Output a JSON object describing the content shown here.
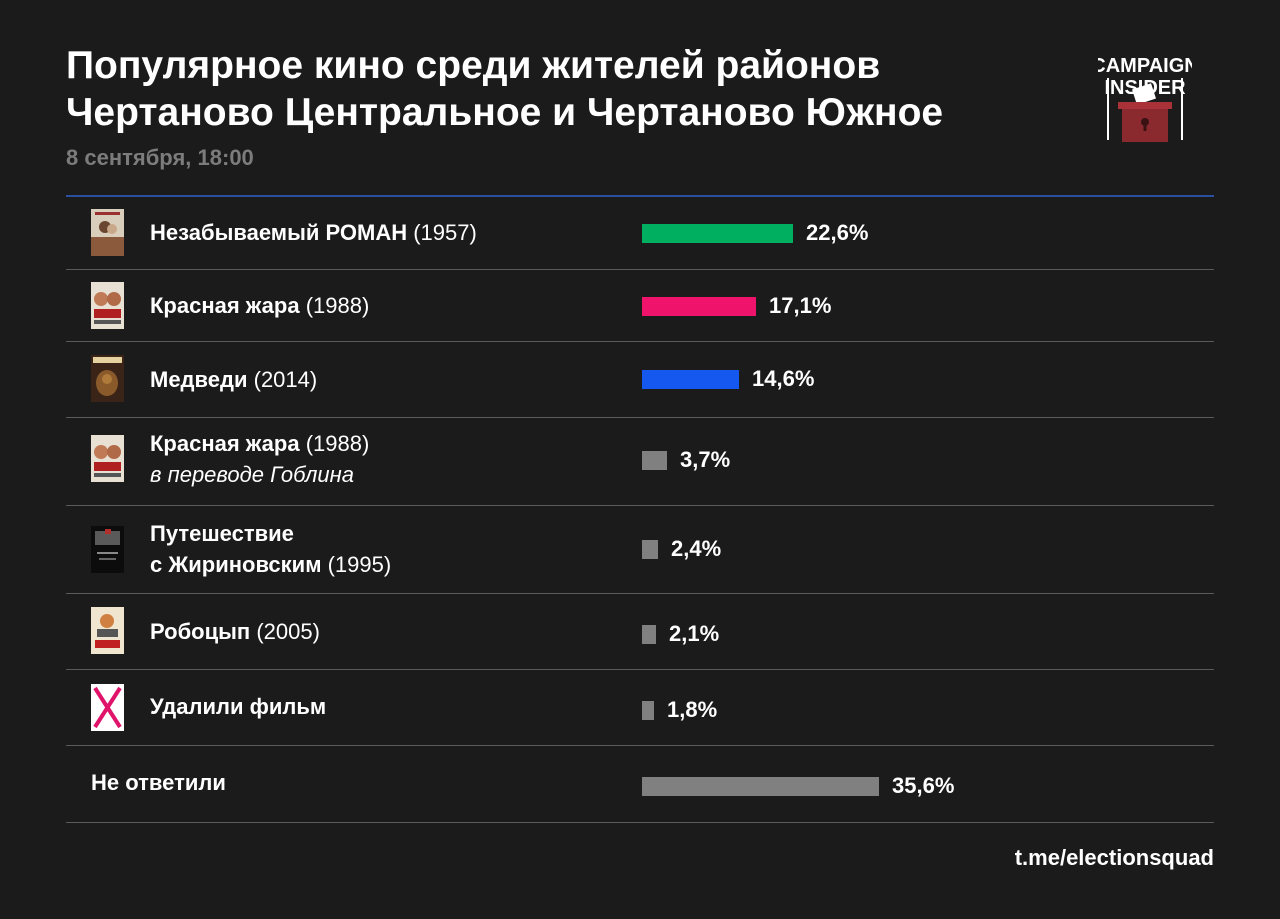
{
  "header": {
    "title_line1": "Популярное кино среди жителей районов",
    "title_line2": "Чертаново Центральное и Чертаново Южное",
    "subtitle": "8 сентября, 18:00"
  },
  "logo": {
    "line1": "CAMPAIGN",
    "line2": "INSIDER"
  },
  "footer": {
    "link": "t.me/electionsquad"
  },
  "chart_data": {
    "type": "bar",
    "orientation": "horizontal",
    "categories": [
      "Незабываемый РОМАН (1957)",
      "Красная жара (1988)",
      "Медведи (2014)",
      "Красная жара (1988) в переводе Гоблина",
      "Путешествие с Жириновским (1995)",
      "Робоцып (2005)",
      "Удалили фильм",
      "Не ответили"
    ],
    "values": [
      22.6,
      17.1,
      14.6,
      3.7,
      2.4,
      2.1,
      1.8,
      35.6
    ],
    "value_labels": [
      "22,6%",
      "17,1%",
      "14,6%",
      "3,7%",
      "2,4%",
      "2,1%",
      "1,8%",
      "35,6%"
    ],
    "unit": "%",
    "colors": [
      "#00b060",
      "#f0136b",
      "#1558f0",
      "#808080",
      "#808080",
      "#808080",
      "#808080",
      "#808080"
    ],
    "rows": [
      {
        "title": "Незабываемый РОМАН",
        "year": "(1957)",
        "note": "",
        "poster": "romance-poster-icon"
      },
      {
        "title": "Красная жара",
        "year": "(1988)",
        "note": "",
        "poster": "red-heat-poster-icon"
      },
      {
        "title": "Медведи",
        "year": "(2014)",
        "note": "",
        "poster": "bears-poster-icon"
      },
      {
        "title": "Красная жара",
        "year": "(1988)",
        "note": "в переводе Гоблина",
        "poster": "red-heat-poster-icon"
      },
      {
        "title": "Путешествие",
        "title2": "с Жириновским",
        "year": "(1995)",
        "note": "",
        "poster": "journey-poster-icon"
      },
      {
        "title": "Робоцып",
        "year": "(2005)",
        "note": "",
        "poster": "robot-chicken-poster-icon"
      },
      {
        "title": "Удалили фильм",
        "year": "",
        "note": "",
        "poster": "deleted-x-icon"
      },
      {
        "title": "Не ответили",
        "year": "",
        "note": "",
        "poster": ""
      }
    ],
    "title": "Популярное кино среди жителей районов Чертаново Центральное и Чертаново Южное",
    "xlabel": "",
    "ylabel": "",
    "xlim": [
      0,
      100
    ],
    "grid": false
  }
}
